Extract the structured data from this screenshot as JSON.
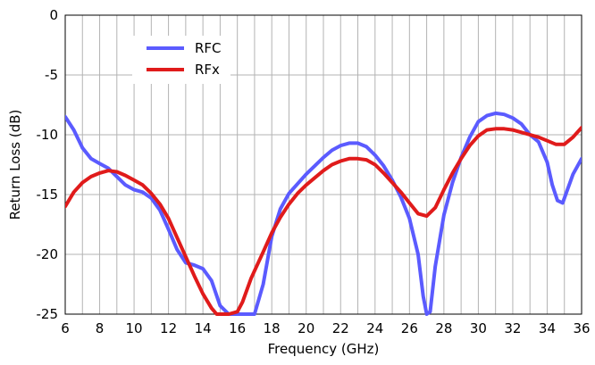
{
  "chart_data": {
    "type": "line",
    "title": "",
    "xlabel": "Frequency (GHz)",
    "ylabel": "Return Loss (dB)",
    "xlim": [
      6,
      36
    ],
    "ylim": [
      -25,
      0
    ],
    "xticks": [
      6,
      8,
      10,
      12,
      14,
      16,
      18,
      20,
      22,
      24,
      26,
      28,
      30,
      32,
      34,
      36
    ],
    "yticks": [
      0,
      -5,
      -10,
      -15,
      -20,
      -25
    ],
    "grid": true,
    "legend_position": "top-left",
    "series": [
      {
        "name": "RFC",
        "color": "#5b5bff",
        "x": [
          6,
          6.5,
          7,
          7.5,
          8,
          8.5,
          9,
          9.5,
          10,
          10.5,
          11,
          11.5,
          12,
          12.5,
          13,
          13.5,
          14,
          14.5,
          15,
          15.5,
          16,
          16.5,
          17,
          17.5,
          18,
          18.5,
          19,
          19.5,
          20,
          20.5,
          21,
          21.5,
          22,
          22.5,
          23,
          23.5,
          24,
          24.5,
          25,
          25.5,
          26,
          26.5,
          26.8,
          27,
          27.2,
          27.5,
          28,
          28.5,
          29,
          29.5,
          30,
          30.5,
          31,
          31.5,
          32,
          32.5,
          33,
          33.5,
          34,
          34.3,
          34.6,
          34.9,
          35.2,
          35.5,
          36
        ],
        "y": [
          -8.5,
          -9.6,
          -11.1,
          -12.0,
          -12.4,
          -12.8,
          -13.5,
          -14.2,
          -14.6,
          -14.8,
          -15.3,
          -16.3,
          -17.9,
          -19.6,
          -20.7,
          -20.9,
          -21.2,
          -22.2,
          -24.3,
          -25.0,
          -25.0,
          -25.0,
          -25.0,
          -22.5,
          -18.5,
          -16.2,
          -14.9,
          -14.1,
          -13.3,
          -12.6,
          -11.9,
          -11.3,
          -10.9,
          -10.7,
          -10.7,
          -11.0,
          -11.7,
          -12.6,
          -13.8,
          -15.2,
          -17.0,
          -20.0,
          -23.5,
          -25.0,
          -24.8,
          -21.0,
          -16.7,
          -14.0,
          -11.9,
          -10.2,
          -8.9,
          -8.4,
          -8.2,
          -8.3,
          -8.6,
          -9.1,
          -10.0,
          -10.6,
          -12.3,
          -14.2,
          -15.5,
          -15.7,
          -14.5,
          -13.3,
          -12.0
        ]
      },
      {
        "name": "RFx",
        "color": "#e01b1b",
        "x": [
          6,
          6.5,
          7,
          7.5,
          8,
          8.5,
          9,
          9.5,
          10,
          10.5,
          11,
          11.5,
          12,
          12.5,
          13,
          13.5,
          14,
          14.5,
          14.8,
          15,
          15.5,
          16,
          16.3,
          16.8,
          17.5,
          18,
          18.5,
          19,
          19.5,
          20,
          20.5,
          21,
          21.5,
          22,
          22.5,
          23,
          23.5,
          24,
          24.5,
          25,
          25.5,
          26,
          26.5,
          27,
          27.5,
          28,
          28.5,
          29,
          29.5,
          30,
          30.5,
          31,
          31.5,
          32,
          32.5,
          33,
          33.5,
          34,
          34.5,
          35,
          35.5,
          36
        ],
        "y": [
          -16.0,
          -14.8,
          -14.0,
          -13.5,
          -13.2,
          -13.0,
          -13.1,
          -13.4,
          -13.8,
          -14.2,
          -14.9,
          -15.8,
          -17.0,
          -18.6,
          -20.2,
          -21.8,
          -23.3,
          -24.5,
          -25.0,
          -25.0,
          -25.0,
          -24.8,
          -24.0,
          -22.0,
          -19.8,
          -18.2,
          -16.9,
          -15.8,
          -14.9,
          -14.2,
          -13.6,
          -13.0,
          -12.5,
          -12.2,
          -12.0,
          -12.0,
          -12.1,
          -12.5,
          -13.2,
          -14.0,
          -14.8,
          -15.7,
          -16.6,
          -16.8,
          -16.1,
          -14.6,
          -13.2,
          -12.0,
          -10.9,
          -10.1,
          -9.6,
          -9.5,
          -9.5,
          -9.6,
          -9.8,
          -10.0,
          -10.2,
          -10.5,
          -10.8,
          -10.8,
          -10.2,
          -9.4
        ]
      }
    ]
  }
}
